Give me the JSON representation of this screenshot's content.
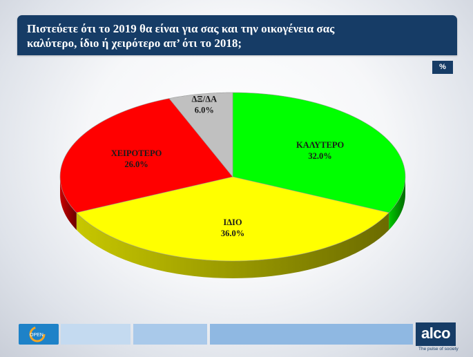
{
  "header": {
    "title_line1": "Πιστεύετε ότι το 2019 θα είναι για σας και την οικογένεια σας",
    "title_line2": "καλύτερο, ίδιο ή χειρότερο απ’  ότι το 2018;"
  },
  "unit_badge": "%",
  "chart_data": {
    "type": "pie",
    "title": "Πιστεύετε ότι το 2019 θα είναι για σας και την οικογένεια σας καλύτερο, ίδιο ή χειρότερο απ’  ότι το 2018;",
    "slices": [
      {
        "label": "ΚΑΛΥΤΕΡΟ",
        "value": 32.0,
        "display": "32.0%",
        "color": "#00ff00"
      },
      {
        "label": "ΙΔΙΟ",
        "value": 36.0,
        "display": "36.0%",
        "color": "#ffff00"
      },
      {
        "label": "ΧΕΙΡΟΤΕΡΟ",
        "value": 26.0,
        "display": "26.0%",
        "color": "#ff0000"
      },
      {
        "label": "ΔΞ/ΔΑ",
        "value": 6.0,
        "display": "6.0%",
        "color": "#c0c0c0"
      }
    ],
    "start": "12 o'clock",
    "direction": "clockwise",
    "style": "3d"
  },
  "footer": {
    "left_logo_text": "OPEN",
    "brand": "alco",
    "tagline": "The pulse of society",
    "brand_color": "#163c66"
  }
}
